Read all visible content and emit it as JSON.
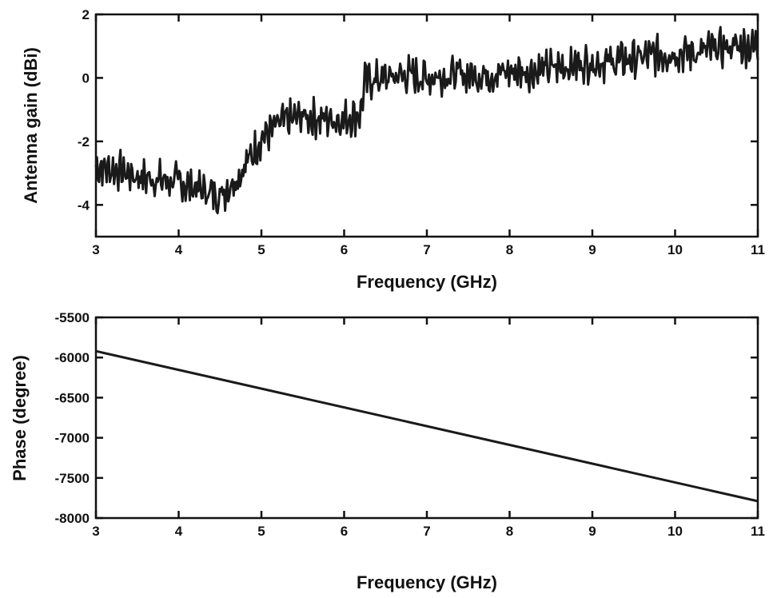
{
  "chart_data": [
    {
      "type": "line",
      "title": "",
      "xlabel": "Frequency (GHz)",
      "ylabel": "Antenna gain (dBi)",
      "xlim": [
        3,
        11
      ],
      "ylim": [
        -5,
        2
      ],
      "xticks": [
        3,
        4,
        5,
        6,
        7,
        8,
        9,
        10,
        11
      ],
      "xtick_labels": [
        "3",
        "4",
        "5",
        "6",
        "7",
        "8",
        "9",
        "10",
        "11"
      ],
      "yticks": [
        2,
        0,
        -2,
        -4
      ],
      "ytick_labels": [
        "2",
        "0",
        "-2",
        "-4"
      ],
      "grid": false,
      "legend": "none",
      "line_color": "#1a1a1a",
      "series": [
        {
          "x": [
            3.0,
            3.25,
            3.5,
            3.75,
            4.0,
            4.25,
            4.5,
            4.75,
            5.0,
            5.25,
            5.5,
            5.75,
            6.0,
            6.2,
            6.25,
            6.5,
            6.75,
            7.0,
            7.25,
            7.5,
            7.75,
            8.0,
            8.25,
            8.5,
            8.75,
            9.0,
            9.25,
            9.5,
            9.75,
            10.0,
            10.25,
            10.5,
            10.75,
            11.0
          ],
          "y": [
            -2.8,
            -2.9,
            -3.1,
            -3.2,
            -3.3,
            -3.5,
            -3.7,
            -3.0,
            -1.9,
            -1.4,
            -1.2,
            -1.3,
            -1.3,
            -1.1,
            -0.1,
            0.0,
            0.1,
            0.0,
            0.1,
            0.1,
            0.1,
            0.2,
            0.2,
            0.3,
            0.4,
            0.5,
            0.5,
            0.6,
            0.7,
            0.8,
            0.8,
            0.9,
            1.0,
            1.0
          ]
        }
      ]
    },
    {
      "type": "line",
      "title": "",
      "xlabel": "Frequency (GHz)",
      "ylabel": "Phase (degree)",
      "xlim": [
        3,
        11
      ],
      "ylim": [
        -8000,
        -5500
      ],
      "xticks": [
        3,
        4,
        5,
        6,
        7,
        8,
        9,
        10,
        11
      ],
      "xtick_labels": [
        "3",
        "4",
        "5",
        "6",
        "7",
        "8",
        "9",
        "10",
        "11"
      ],
      "yticks": [
        -5500,
        -6000,
        -6500,
        -7000,
        -7500,
        -8000
      ],
      "ytick_labels": [
        "-5500",
        "-6000",
        "-6500",
        "-7000",
        "-7500",
        "-8000"
      ],
      "grid": false,
      "legend": "none",
      "line_color": "#1a1a1a",
      "series": [
        {
          "x": [
            3,
            11
          ],
          "y": [
            -5920,
            -7790
          ]
        }
      ]
    }
  ]
}
